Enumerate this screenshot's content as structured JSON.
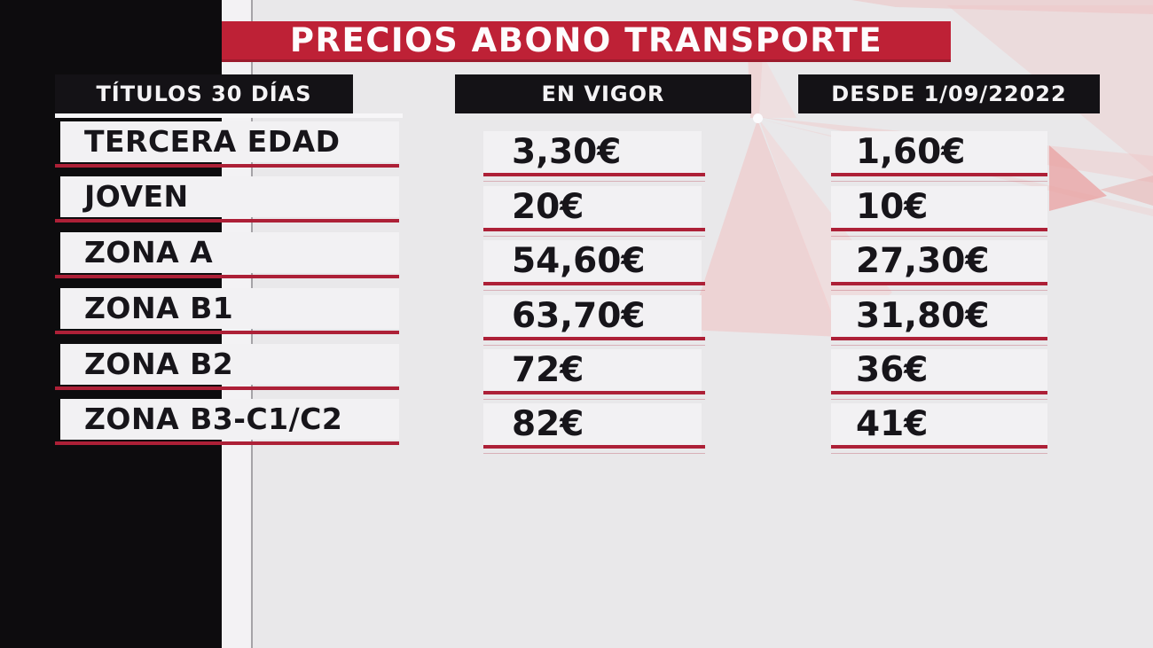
{
  "chart_data": {
    "type": "table",
    "title": "PRECIOS ABONO TRANSPORTE",
    "columns": [
      "TÍTULOS 30 DÍAS",
      "EN VIGOR",
      "DESDE 1/09/22022"
    ],
    "rows": [
      [
        "TERCERA EDAD",
        "3,30€",
        "1,60€"
      ],
      [
        "JOVEN",
        "20€",
        "10€"
      ],
      [
        "ZONA A",
        "54,60€",
        "27,30€"
      ],
      [
        "ZONA B1",
        "63,70€",
        "31,80€"
      ],
      [
        "ZONA B2",
        "72€",
        "36€"
      ],
      [
        "ZONA B3-C1/C2",
        "82€",
        "41€"
      ]
    ]
  },
  "colors": {
    "banner_red": "#be2136",
    "underline_red": "#ad2037",
    "panel_black": "#0d0c0e",
    "header_black": "#141216",
    "background_gray": "#e9e8ea",
    "strip_white": "#f2f1f3",
    "deco_pink": "#eeb9b7"
  }
}
